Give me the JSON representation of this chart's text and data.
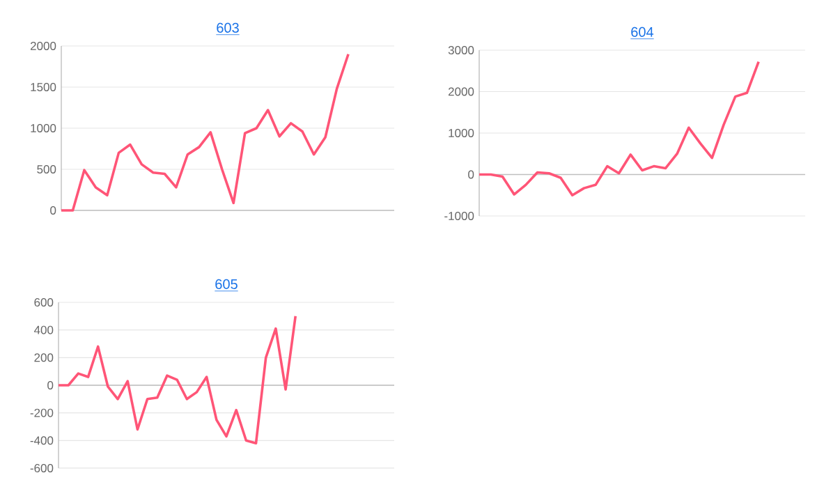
{
  "chart_data": [
    {
      "type": "line",
      "title": "603",
      "color": "#ff5577",
      "grid": "y",
      "marker": "none",
      "line_style": "solid",
      "categories": [
        null,
        null,
        null,
        null,
        null,
        null,
        null,
        null,
        null,
        null,
        null,
        null,
        null,
        null,
        null,
        null,
        null,
        null,
        null,
        null,
        null,
        null,
        null,
        null,
        null,
        null,
        null,
        null,
        null,
        null
      ],
      "values": [
        0,
        0,
        490,
        280,
        185,
        700,
        800,
        560,
        460,
        445,
        280,
        680,
        770,
        950,
        500,
        90,
        940,
        1000,
        1220,
        900,
        1060,
        960,
        680,
        890,
        1480,
        1900,
        null,
        null,
        null,
        null
      ],
      "ylim": [
        0,
        2000
      ],
      "yticks": [
        0,
        500,
        1000,
        1500,
        2000
      ]
    },
    {
      "type": "line",
      "title": "604",
      "color": "#ff5577",
      "grid": "y",
      "marker": "none",
      "line_style": "solid",
      "categories": [
        null,
        null,
        null,
        null,
        null,
        null,
        null,
        null,
        null,
        null,
        null,
        null,
        null,
        null,
        null,
        null,
        null,
        null,
        null,
        null,
        null,
        null,
        null,
        null,
        null,
        null,
        null,
        null,
        null
      ],
      "values": [
        0,
        0,
        -50,
        -480,
        -250,
        50,
        30,
        -80,
        -500,
        -330,
        -250,
        200,
        30,
        480,
        100,
        200,
        150,
        500,
        1130,
        750,
        400,
        1200,
        1880,
        1970,
        2720,
        null,
        null,
        null,
        null
      ],
      "ylim": [
        -1000,
        3000
      ],
      "yticks": [
        -1000,
        0,
        1000,
        2000,
        3000
      ]
    },
    {
      "type": "line",
      "title": "605",
      "color": "#ff5577",
      "grid": "y",
      "marker": "none",
      "line_style": "solid",
      "categories": [
        null,
        null,
        null,
        null,
        null,
        null,
        null,
        null,
        null,
        null,
        null,
        null,
        null,
        null,
        null,
        null,
        null,
        null,
        null,
        null,
        null,
        null,
        null,
        null,
        null,
        null,
        null,
        null,
        null,
        null,
        null,
        null,
        null,
        null,
        null
      ],
      "values": [
        0,
        0,
        85,
        60,
        280,
        -10,
        -100,
        30,
        -320,
        -100,
        -90,
        70,
        40,
        -100,
        -50,
        60,
        -250,
        -370,
        -180,
        -400,
        -420,
        200,
        410,
        -30,
        500,
        null,
        null,
        null,
        null,
        null,
        null,
        null,
        null,
        null,
        null
      ],
      "ylim": [
        -600,
        600
      ],
      "yticks": [
        -600,
        -400,
        -200,
        0,
        200,
        400,
        600
      ]
    }
  ]
}
